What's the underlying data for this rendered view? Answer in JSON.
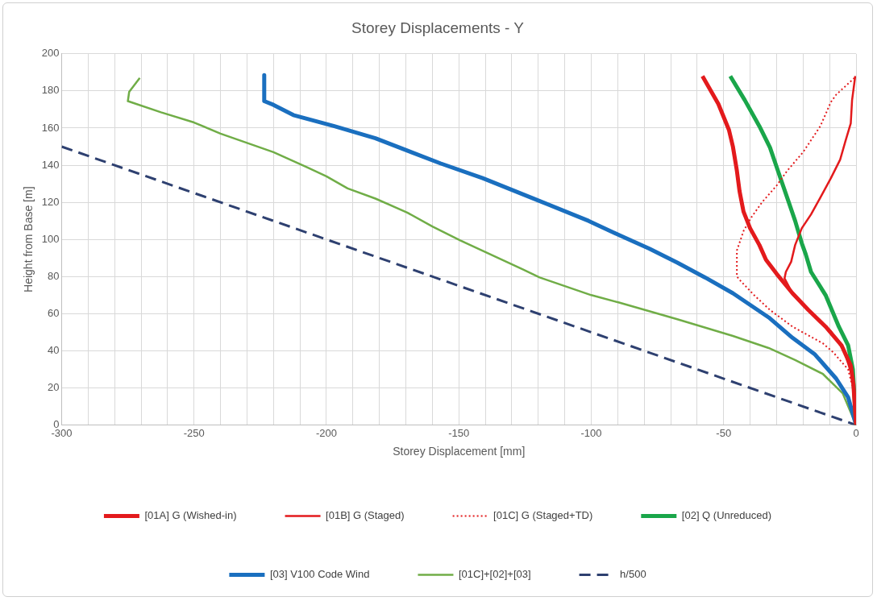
{
  "chart_data": {
    "type": "line",
    "title": "Storey Displacements - Y",
    "xlabel": "Storey Displacement [mm]",
    "ylabel": "Height from Base [m]",
    "xlim": [
      -300,
      0
    ],
    "xticks": [
      -300,
      {
        "value": -290,
        "label": null
      },
      {
        "value": -280,
        "label": null
      },
      {
        "value": -270,
        "label": null
      },
      {
        "value": -260,
        "label": null
      },
      -250,
      {
        "value": -240,
        "label": null
      },
      {
        "value": -230,
        "label": null
      },
      {
        "value": -220,
        "label": null
      },
      {
        "value": -210,
        "label": null
      },
      -200,
      {
        "value": -190,
        "label": null
      },
      {
        "value": -180,
        "label": null
      },
      {
        "value": -170,
        "label": null
      },
      {
        "value": -160,
        "label": null
      },
      -150,
      {
        "value": -140,
        "label": null
      },
      {
        "value": -130,
        "label": null
      },
      {
        "value": -120,
        "label": null
      },
      {
        "value": -110,
        "label": null
      },
      -100,
      {
        "value": -90,
        "label": null
      },
      {
        "value": -80,
        "label": null
      },
      {
        "value": -70,
        "label": null
      },
      {
        "value": -60,
        "label": null
      },
      -50,
      {
        "value": -40,
        "label": null
      },
      {
        "value": -30,
        "label": null
      },
      {
        "value": -20,
        "label": null
      },
      {
        "value": -10,
        "label": null
      },
      0
    ],
    "ylim": [
      0,
      200
    ],
    "yticks": [
      0,
      20,
      40,
      60,
      80,
      100,
      120,
      140,
      160,
      180,
      200
    ],
    "grid": true,
    "legend": "bottom",
    "marker": "none",
    "series": [
      {
        "name": "[01A] G (Wished-in)",
        "color": "#e31a1c",
        "line_style": "solid",
        "x": [
          -58,
          -52,
          -48,
          -46.5,
          -45,
          -44,
          -42.5,
          -40,
          -36.5,
          -34,
          -30,
          -24,
          -18,
          -11.5,
          -5.5,
          -2,
          -1,
          0
        ],
        "values": [
          188,
          173,
          159,
          150,
          137,
          126,
          115,
          106,
          97,
          89,
          81.5,
          71,
          62,
          53,
          43,
          32,
          22,
          0
        ]
      },
      {
        "name": "[01B] G (Staged)",
        "color": "#e31a1c",
        "line_style": "solid",
        "x": [
          -0.3,
          -1.5,
          -2,
          -4,
          -6,
          -9.5,
          -13.5,
          -17,
          -20.5,
          -23,
          -24.5,
          -26.5,
          -27,
          -24,
          -17,
          -9.5,
          -4.5,
          -1.2,
          0
        ],
        "values": [
          188,
          175,
          162.5,
          153,
          143,
          133,
          122.5,
          113.5,
          106,
          97,
          88,
          82.5,
          79,
          71,
          61,
          50.5,
          40,
          25,
          0
        ]
      },
      {
        "name": "[01C] G (Staged+TD)",
        "color": "#e31a1c",
        "line_style": "dotted",
        "x": [
          -0.6,
          -7.5,
          -9.5,
          -13.5,
          -20,
          -26,
          -30,
          -35.5,
          -39.5,
          -42.5,
          -45,
          -45,
          -45,
          -43.5,
          -38.5,
          -32.5,
          -24,
          -12.5,
          -8.5,
          -3,
          -1.2,
          0
        ],
        "values": [
          187,
          178,
          174,
          161,
          147,
          137,
          129,
          120,
          112,
          104.5,
          94,
          89,
          80,
          77.5,
          70,
          62,
          53,
          44,
          39,
          30,
          20,
          0
        ]
      },
      {
        "name": "[02] Q (Unreduced)",
        "color": "#1aa64a",
        "line_style": "solid",
        "x": [
          -47.5,
          -42,
          -36.5,
          -32.5,
          -29.5,
          -26,
          -23,
          -20.5,
          -19,
          -17,
          -11.5,
          -6.5,
          -3,
          -1.2,
          0
        ],
        "values": [
          188,
          175,
          161,
          149.5,
          137,
          122.5,
          110,
          98,
          92,
          82.5,
          70,
          53,
          43,
          30,
          0
        ]
      },
      {
        "name": "[03] V100 Code Wind",
        "color": "#1a6fbf",
        "line_style": "solid",
        "x": [
          -223.5,
          -223.5,
          -220,
          -212.5,
          -197,
          -181.5,
          -157,
          -141,
          -120,
          -101,
          -89,
          -78,
          -67.5,
          -57,
          -46.5,
          -33,
          -24,
          -15.5,
          -7.5,
          -3,
          0
        ],
        "values": [
          188.5,
          174.5,
          172.5,
          167,
          161,
          154.5,
          141,
          133,
          121,
          110,
          102,
          95,
          87.5,
          79.5,
          71,
          58,
          47,
          38,
          25,
          15,
          0
        ]
      },
      {
        "name": "[01C]+[02]+[03]",
        "color": "#70ad47",
        "line_style": "solid",
        "x": [
          -270.5,
          -274.5,
          -275,
          -262.5,
          -250,
          -240,
          -220,
          -207.5,
          -200,
          -192,
          -181.5,
          -169.5,
          -160,
          -149.5,
          -126,
          -119.5,
          -100,
          -89.5,
          -67.5,
          -46.5,
          -33,
          -23,
          -12.5,
          -5,
          0
        ],
        "values": [
          187,
          179.5,
          174.5,
          168.5,
          163,
          157,
          147,
          139,
          134,
          127.5,
          122,
          114.5,
          107,
          99.5,
          84,
          79.5,
          70,
          66,
          57,
          48,
          41.5,
          35,
          27.5,
          17,
          0
        ]
      },
      {
        "name": "h/500",
        "color": "#2e4070",
        "line_style": "dashed",
        "x": [
          -300,
          0
        ],
        "values": [
          150,
          0
        ]
      }
    ]
  }
}
